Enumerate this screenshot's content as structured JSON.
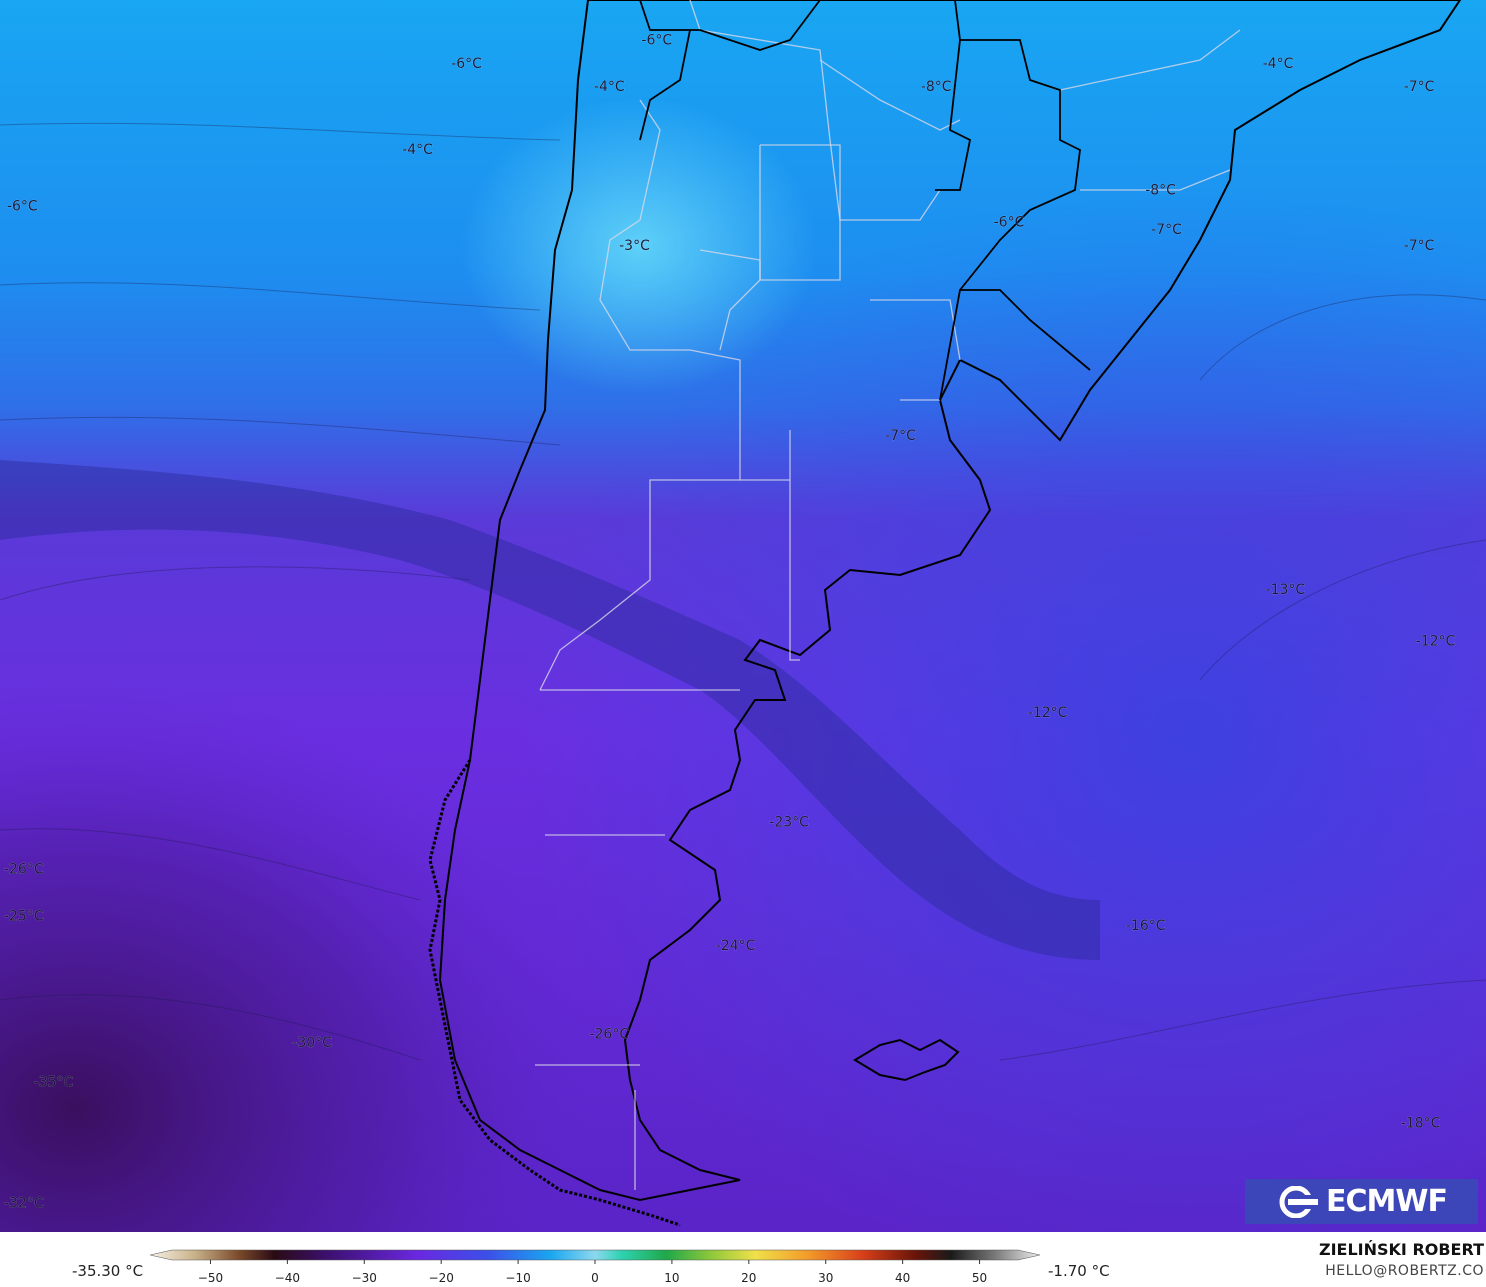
{
  "map": {
    "temperature_labels": [
      {
        "text": "-6°C",
        "lon": 0.314,
        "lat": 0.055
      },
      {
        "text": "-6°C",
        "lon": 0.442,
        "lat": 0.036
      },
      {
        "text": "-4°C",
        "lon": 0.41,
        "lat": 0.074
      },
      {
        "text": "-4°C",
        "lon": 0.281,
        "lat": 0.125
      },
      {
        "text": "-6°C",
        "lon": 0.015,
        "lat": 0.171
      },
      {
        "text": "-8°C",
        "lon": 0.63,
        "lat": 0.074
      },
      {
        "text": "-4°C",
        "lon": 0.86,
        "lat": 0.055
      },
      {
        "text": "-7°C",
        "lon": 0.955,
        "lat": 0.074
      },
      {
        "text": "-8°C",
        "lon": 0.781,
        "lat": 0.158
      },
      {
        "text": "-6°C",
        "lon": 0.679,
        "lat": 0.184
      },
      {
        "text": "-7°C",
        "lon": 0.785,
        "lat": 0.19
      },
      {
        "text": "-7°C",
        "lon": 0.955,
        "lat": 0.203
      },
      {
        "text": "-3°C",
        "lon": 0.427,
        "lat": 0.203
      },
      {
        "text": "-7°C",
        "lon": 0.606,
        "lat": 0.357
      },
      {
        "text": "-13°C",
        "lon": 0.865,
        "lat": 0.482
      },
      {
        "text": "-12°C",
        "lon": 0.966,
        "lat": 0.524
      },
      {
        "text": "-12°C",
        "lon": 0.705,
        "lat": 0.582
      },
      {
        "text": "-23°C",
        "lon": 0.531,
        "lat": 0.671
      },
      {
        "text": "-26°C",
        "lon": 0.016,
        "lat": 0.709
      },
      {
        "text": "-25°C",
        "lon": 0.016,
        "lat": 0.747
      },
      {
        "text": "-16°C",
        "lon": 0.771,
        "lat": 0.755
      },
      {
        "text": "-24°C",
        "lon": 0.495,
        "lat": 0.771
      },
      {
        "text": "-26°C",
        "lon": 0.41,
        "lat": 0.843
      },
      {
        "text": "-30°C",
        "lon": 0.21,
        "lat": 0.85
      },
      {
        "text": "-35°C",
        "lon": 0.036,
        "lat": 0.882
      },
      {
        "text": "-18°C",
        "lon": 0.956,
        "lat": 0.915
      },
      {
        "text": "-32°C",
        "lon": 0.016,
        "lat": 0.98
      }
    ]
  },
  "logo": {
    "text": "ECMWF"
  },
  "colorbar": {
    "min_label": "-35.30 °C",
    "max_label": "-1.70 °C",
    "ticks": [
      "−50",
      "−40",
      "−30",
      "−20",
      "−10",
      "0",
      "10",
      "20",
      "30",
      "40",
      "50"
    ],
    "tick_values": [
      -50,
      -40,
      -30,
      -20,
      -10,
      0,
      10,
      20,
      30,
      40,
      50
    ],
    "range": [
      -55,
      55
    ]
  },
  "credits": {
    "author": "ZIELIŃSKI ROBERT",
    "email": "HELLO@ROBERTZ.CO"
  }
}
